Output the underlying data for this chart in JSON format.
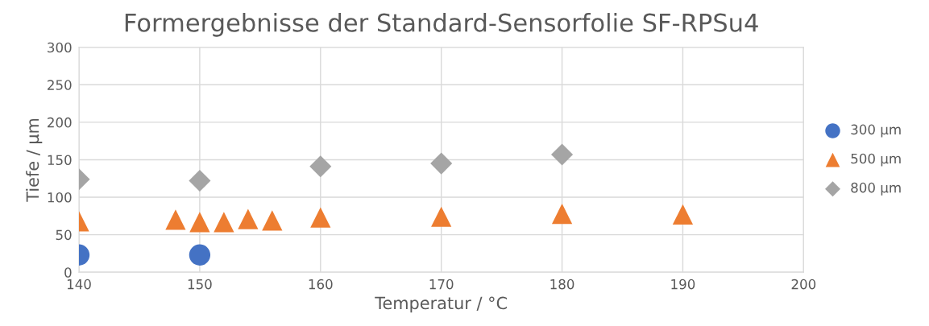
{
  "chart_data": {
    "type": "scatter",
    "title": "Formergebnisse der Standard-Sensorfolie SF-RPSu4",
    "xlabel": "Temperatur / °C",
    "ylabel": "Tiefe / µm",
    "xlim": [
      140,
      200
    ],
    "xticks": [
      140,
      150,
      160,
      170,
      180,
      190,
      200
    ],
    "ylim": [
      0,
      300
    ],
    "yticks": [
      0,
      50,
      100,
      150,
      200,
      250,
      300
    ],
    "grid": true,
    "legend": "right",
    "series": [
      {
        "name": "300 µm",
        "color": "#4472c4",
        "marker": "circle",
        "x": [
          140,
          150
        ],
        "values": [
          23,
          23
        ]
      },
      {
        "name": "500 µm",
        "color": "#ed7d31",
        "marker": "triangle",
        "x": [
          140,
          148,
          150,
          152,
          154,
          156,
          160,
          170,
          180,
          190
        ],
        "values": [
          68,
          70,
          67,
          67,
          71,
          69,
          73,
          74,
          78,
          77
        ]
      },
      {
        "name": "800 µm",
        "color": "#a5a5a5",
        "marker": "diamond",
        "x": [
          140,
          150,
          160,
          170,
          180
        ],
        "values": [
          124,
          122,
          141,
          145,
          157
        ]
      }
    ]
  }
}
